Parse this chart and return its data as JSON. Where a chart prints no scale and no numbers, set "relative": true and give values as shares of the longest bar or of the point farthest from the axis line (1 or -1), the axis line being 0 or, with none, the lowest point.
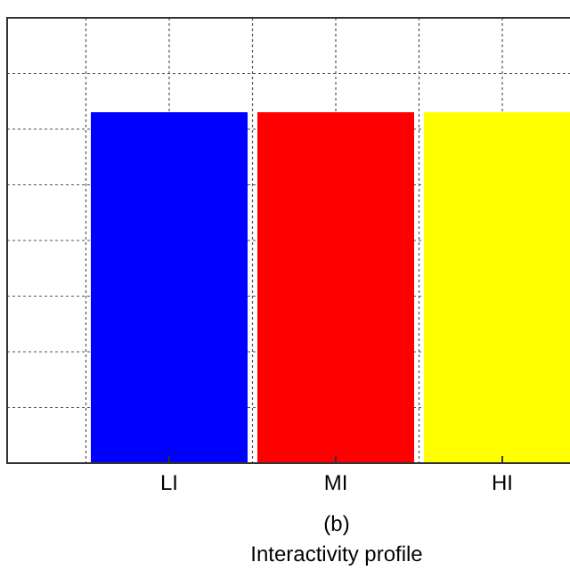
{
  "chart_data": {
    "type": "bar",
    "title": "(b)",
    "xlabel": "Interactivity profile",
    "categories": [
      "LI",
      "MI",
      "HI"
    ],
    "values": [
      1,
      1,
      1
    ],
    "colors": [
      "#0000ff",
      "#ff0000",
      "#ffff00"
    ],
    "relative": true,
    "grid": true
  }
}
